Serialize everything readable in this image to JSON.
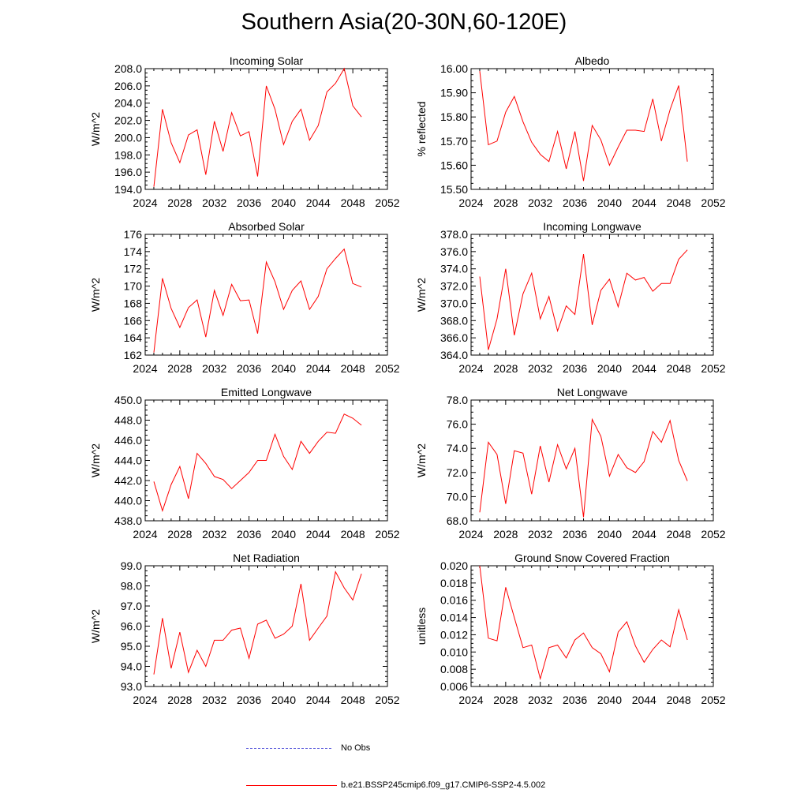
{
  "title": "Southern Asia(20-30N,60-120E)",
  "colors": {
    "model": "#ff0000",
    "obs": "#5a5adc",
    "axis": "#000000"
  },
  "legend": {
    "obs_label": "No Obs",
    "model_label": "b.e21.BSSP245cmip6.f09_g17.CMIP6-SSP2-4.5.002"
  },
  "chart_data": [
    {
      "type": "line",
      "title": "Incoming Solar",
      "ylabel": "W/m^2",
      "xlim": [
        2024,
        2052
      ],
      "ylim": [
        194,
        208
      ],
      "yticks": [
        194.0,
        196.0,
        198.0,
        200.0,
        202.0,
        204.0,
        206.0,
        208.0
      ],
      "ytick_labels": [
        "194.0",
        "196.0",
        "198.0",
        "200.0",
        "202.0",
        "204.0",
        "206.0",
        "208.0"
      ],
      "xticks": [
        2024,
        2028,
        2032,
        2036,
        2040,
        2044,
        2048,
        2052
      ],
      "xtick_labels": [
        "2024",
        "2028",
        "2032",
        "2036",
        "2040",
        "2044",
        "2048",
        "2052"
      ],
      "x": [
        2025,
        2026,
        2027,
        2028,
        2029,
        2030,
        2031,
        2032,
        2033,
        2034,
        2035,
        2036,
        2037,
        2038,
        2039,
        2040,
        2041,
        2042,
        2043,
        2044,
        2045,
        2046,
        2047,
        2048,
        2049
      ],
      "values": [
        194.3,
        203.3,
        199.4,
        197.1,
        200.3,
        200.9,
        195.7,
        201.9,
        198.4,
        202.9,
        200.2,
        200.7,
        195.5,
        206.0,
        203.3,
        199.2,
        201.9,
        203.3,
        199.7,
        201.4,
        205.3,
        206.3,
        208.0,
        203.7,
        202.4
      ]
    },
    {
      "type": "line",
      "title": "Albedo",
      "ylabel": "% reflected",
      "xlim": [
        2024,
        2052
      ],
      "ylim": [
        15.5,
        16.0
      ],
      "yticks": [
        15.5,
        15.6,
        15.7,
        15.8,
        15.9,
        16.0
      ],
      "ytick_labels": [
        "15.50",
        "15.60",
        "15.70",
        "15.80",
        "15.90",
        "16.00"
      ],
      "xticks": [
        2024,
        2028,
        2032,
        2036,
        2040,
        2044,
        2048,
        2052
      ],
      "xtick_labels": [
        "2024",
        "2028",
        "2032",
        "2036",
        "2040",
        "2044",
        "2048",
        "2052"
      ],
      "x": [
        2025,
        2026,
        2027,
        2028,
        2029,
        2030,
        2031,
        2032,
        2033,
        2034,
        2035,
        2036,
        2037,
        2038,
        2039,
        2040,
        2041,
        2042,
        2043,
        2044,
        2045,
        2046,
        2047,
        2048,
        2049
      ],
      "values": [
        15.99,
        15.685,
        15.7,
        15.82,
        15.885,
        15.78,
        15.695,
        15.645,
        15.615,
        15.74,
        15.585,
        15.74,
        15.535,
        15.765,
        15.705,
        15.6,
        15.675,
        15.745,
        15.745,
        15.74,
        15.875,
        15.7,
        15.83,
        15.93,
        15.615
      ]
    },
    {
      "type": "line",
      "title": "Absorbed Solar",
      "ylabel": "W/m^2",
      "xlim": [
        2024,
        2052
      ],
      "ylim": [
        162,
        176
      ],
      "yticks": [
        162,
        164,
        166,
        168,
        170,
        172,
        174,
        176
      ],
      "ytick_labels": [
        "162",
        "164",
        "166",
        "168",
        "170",
        "172",
        "174",
        "176"
      ],
      "xticks": [
        2024,
        2028,
        2032,
        2036,
        2040,
        2044,
        2048,
        2052
      ],
      "xtick_labels": [
        "2024",
        "2028",
        "2032",
        "2036",
        "2040",
        "2044",
        "2048",
        "2052"
      ],
      "x": [
        2025,
        2026,
        2027,
        2028,
        2029,
        2030,
        2031,
        2032,
        2033,
        2034,
        2035,
        2036,
        2037,
        2038,
        2039,
        2040,
        2041,
        2042,
        2043,
        2044,
        2045,
        2046,
        2047,
        2048,
        2049
      ],
      "values": [
        162.3,
        170.9,
        167.4,
        165.2,
        167.5,
        168.4,
        164.1,
        169.5,
        166.6,
        170.2,
        168.3,
        168.4,
        164.5,
        172.8,
        170.5,
        167.3,
        169.5,
        170.6,
        167.3,
        168.8,
        172.0,
        173.2,
        174.3,
        170.3,
        169.9
      ]
    },
    {
      "type": "line",
      "title": "Incoming Longwave",
      "ylabel": "W/m^2",
      "xlim": [
        2024,
        2052
      ],
      "ylim": [
        364,
        378
      ],
      "yticks": [
        364,
        366,
        368,
        370,
        372,
        374,
        376,
        378
      ],
      "ytick_labels": [
        "364.0",
        "366.0",
        "368.0",
        "370.0",
        "372.0",
        "374.0",
        "376.0",
        "378.0"
      ],
      "xticks": [
        2024,
        2028,
        2032,
        2036,
        2040,
        2044,
        2048,
        2052
      ],
      "xtick_labels": [
        "2024",
        "2028",
        "2032",
        "2036",
        "2040",
        "2044",
        "2048",
        "2052"
      ],
      "x": [
        2025,
        2026,
        2027,
        2028,
        2029,
        2030,
        2031,
        2032,
        2033,
        2034,
        2035,
        2036,
        2037,
        2038,
        2039,
        2040,
        2041,
        2042,
        2043,
        2044,
        2045,
        2046,
        2047,
        2048,
        2049
      ],
      "values": [
        373.1,
        364.6,
        368.2,
        374.0,
        366.3,
        371.1,
        373.5,
        368.2,
        370.8,
        366.8,
        369.7,
        368.7,
        375.7,
        367.5,
        371.5,
        372.8,
        369.6,
        373.5,
        372.7,
        373.0,
        371.4,
        372.3,
        372.3,
        375.1,
        376.2
      ]
    },
    {
      "type": "line",
      "title": "Emitted Longwave",
      "ylabel": "W/m^2",
      "xlim": [
        2024,
        2052
      ],
      "ylim": [
        438,
        450
      ],
      "yticks": [
        438,
        440,
        442,
        444,
        446,
        448,
        450
      ],
      "ytick_labels": [
        "438.0",
        "440.0",
        "442.0",
        "444.0",
        "446.0",
        "448.0",
        "450.0"
      ],
      "xticks": [
        2024,
        2028,
        2032,
        2036,
        2040,
        2044,
        2048,
        2052
      ],
      "xtick_labels": [
        "2024",
        "2028",
        "2032",
        "2036",
        "2040",
        "2044",
        "2048",
        "2052"
      ],
      "x": [
        2025,
        2026,
        2027,
        2028,
        2029,
        2030,
        2031,
        2032,
        2033,
        2034,
        2035,
        2036,
        2037,
        2038,
        2039,
        2040,
        2041,
        2042,
        2043,
        2044,
        2045,
        2046,
        2047,
        2048,
        2049
      ],
      "values": [
        441.9,
        439.0,
        441.6,
        443.4,
        440.2,
        444.7,
        443.7,
        442.4,
        442.1,
        441.2,
        442.0,
        442.8,
        444.0,
        444.0,
        446.6,
        444.4,
        443.1,
        445.9,
        444.7,
        445.9,
        446.8,
        446.7,
        448.6,
        448.2,
        447.5
      ]
    },
    {
      "type": "line",
      "title": "Net Longwave",
      "ylabel": "W/m^2",
      "xlim": [
        2024,
        2052
      ],
      "ylim": [
        68,
        78
      ],
      "yticks": [
        68,
        70,
        72,
        74,
        76,
        78
      ],
      "ytick_labels": [
        "68.0",
        "70.0",
        "72.0",
        "74.0",
        "76.0",
        "78.0"
      ],
      "xticks": [
        2024,
        2028,
        2032,
        2036,
        2040,
        2044,
        2048,
        2052
      ],
      "xtick_labels": [
        "2024",
        "2028",
        "2032",
        "2036",
        "2040",
        "2044",
        "2048",
        "2052"
      ],
      "x": [
        2025,
        2026,
        2027,
        2028,
        2029,
        2030,
        2031,
        2032,
        2033,
        2034,
        2035,
        2036,
        2037,
        2038,
        2039,
        2040,
        2041,
        2042,
        2043,
        2044,
        2045,
        2046,
        2047,
        2048,
        2049
      ],
      "values": [
        68.7,
        74.5,
        73.5,
        69.4,
        73.8,
        73.6,
        70.2,
        74.2,
        71.2,
        74.3,
        72.3,
        74.0,
        68.3,
        76.4,
        75.0,
        71.7,
        73.5,
        72.4,
        72.0,
        72.9,
        75.4,
        74.5,
        76.3,
        73.0,
        71.3
      ]
    },
    {
      "type": "line",
      "title": "Net Radiation",
      "ylabel": "W/m^2",
      "xlim": [
        2024,
        2052
      ],
      "ylim": [
        93,
        99
      ],
      "yticks": [
        93,
        94,
        95,
        96,
        97,
        98,
        99
      ],
      "ytick_labels": [
        "93.0",
        "94.0",
        "95.0",
        "96.0",
        "97.0",
        "98.0",
        "99.0"
      ],
      "xticks": [
        2024,
        2028,
        2032,
        2036,
        2040,
        2044,
        2048,
        2052
      ],
      "xtick_labels": [
        "2024",
        "2028",
        "2032",
        "2036",
        "2040",
        "2044",
        "2048",
        "2052"
      ],
      "x": [
        2025,
        2026,
        2027,
        2028,
        2029,
        2030,
        2031,
        2032,
        2033,
        2034,
        2035,
        2036,
        2037,
        2038,
        2039,
        2040,
        2041,
        2042,
        2043,
        2044,
        2045,
        2046,
        2047,
        2048,
        2049
      ],
      "values": [
        93.6,
        96.4,
        93.9,
        95.7,
        93.7,
        94.8,
        94.0,
        95.3,
        95.3,
        95.8,
        95.9,
        94.4,
        96.1,
        96.3,
        95.4,
        95.6,
        96.0,
        98.1,
        95.3,
        95.9,
        96.5,
        98.7,
        97.9,
        97.3,
        98.6
      ]
    },
    {
      "type": "line",
      "title": "Ground Snow Covered Fraction",
      "ylabel": "unitless",
      "xlim": [
        2024,
        2052
      ],
      "ylim": [
        0.006,
        0.02
      ],
      "yticks": [
        0.006,
        0.008,
        0.01,
        0.012,
        0.014,
        0.016,
        0.018,
        0.02
      ],
      "ytick_labels": [
        "0.006",
        "0.008",
        "0.010",
        "0.012",
        "0.014",
        "0.016",
        "0.018",
        "0.020"
      ],
      "xticks": [
        2024,
        2028,
        2032,
        2036,
        2040,
        2044,
        2048,
        2052
      ],
      "xtick_labels": [
        "2024",
        "2028",
        "2032",
        "2036",
        "2040",
        "2044",
        "2048",
        "2052"
      ],
      "x": [
        2025,
        2026,
        2027,
        2028,
        2029,
        2030,
        2031,
        2032,
        2033,
        2034,
        2035,
        2036,
        2037,
        2038,
        2039,
        2040,
        2041,
        2042,
        2043,
        2044,
        2045,
        2046,
        2047,
        2048,
        2049
      ],
      "values": [
        0.02,
        0.0116,
        0.0113,
        0.0175,
        0.014,
        0.0105,
        0.0108,
        0.0069,
        0.0105,
        0.0108,
        0.0093,
        0.0114,
        0.0122,
        0.0105,
        0.0098,
        0.0077,
        0.0123,
        0.0135,
        0.0107,
        0.0088,
        0.0103,
        0.0114,
        0.0106,
        0.0149,
        0.0114
      ]
    }
  ]
}
